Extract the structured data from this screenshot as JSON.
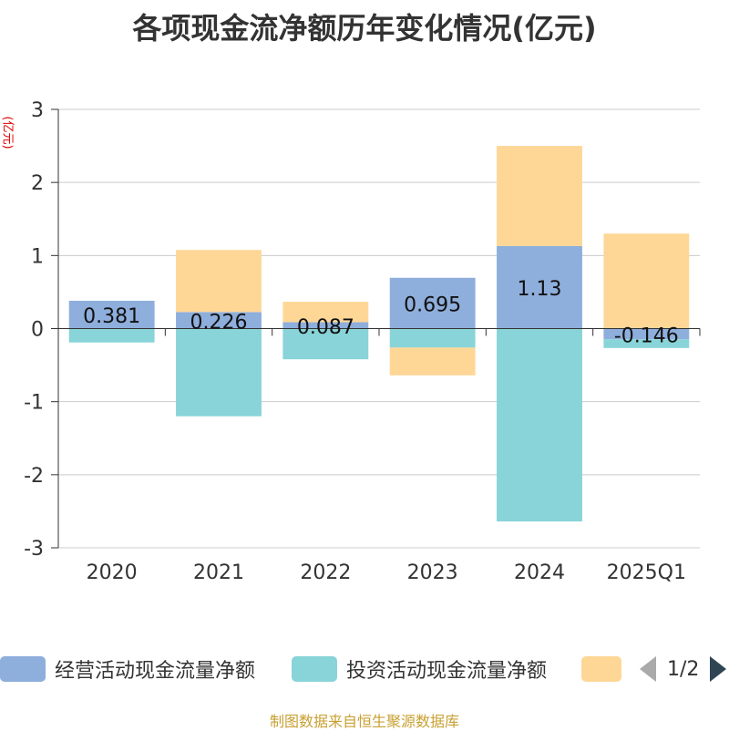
{
  "title": "各项现金流净额历年变化情况(亿元)",
  "unit_label": "(亿元)",
  "source": "制图数据来自恒生聚源数据库",
  "legend": {
    "items": [
      {
        "label": "经营活动现金流量净额",
        "color": "#8eaedc"
      },
      {
        "label": "投资活动现金流量净额",
        "color": "#88d4d8"
      },
      {
        "label": "",
        "color": "#fed797"
      }
    ],
    "page": "1/2"
  },
  "chart_data": {
    "type": "bar",
    "stacked": true,
    "categories": [
      "2020",
      "2021",
      "2022",
      "2023",
      "2024",
      "2025Q1"
    ],
    "ylim": [
      -3,
      3
    ],
    "yticks": [
      -3,
      -2,
      -1,
      0,
      1,
      2,
      3
    ],
    "grid": true,
    "legend_position": "bottom",
    "series": [
      {
        "name": "经营活动现金流量净额",
        "color": "#8eaedc",
        "values": [
          0.381,
          0.226,
          0.087,
          0.695,
          1.13,
          -0.146
        ],
        "labels": [
          "0.381",
          "0.226",
          "0.087",
          "0.695",
          "1.13",
          "-0.146"
        ]
      },
      {
        "name": "投资活动现金流量净额",
        "color": "#88d4d8",
        "values": [
          -0.19,
          -1.2,
          -0.42,
          -0.26,
          -2.64,
          -0.12
        ]
      },
      {
        "color": "#fed797",
        "values": [
          0.0,
          0.85,
          0.28,
          -0.38,
          1.37,
          1.3
        ]
      }
    ]
  }
}
